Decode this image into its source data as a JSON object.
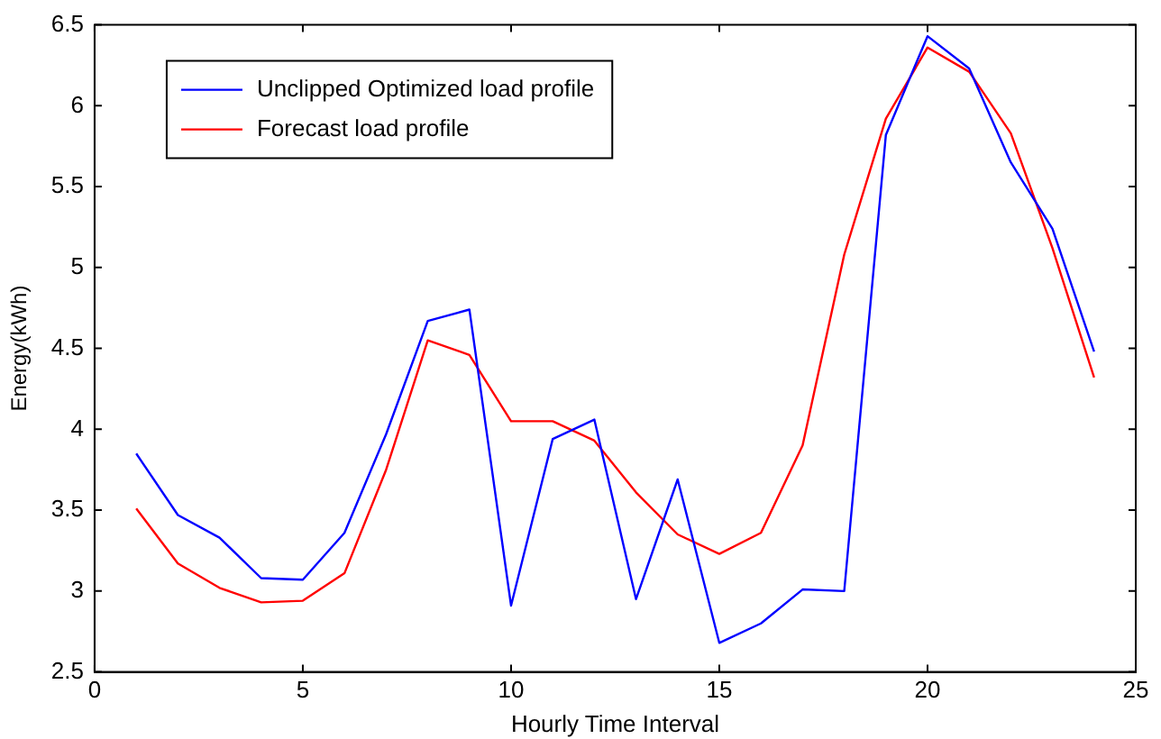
{
  "chart_data": {
    "type": "line",
    "xlabel": "Hourly Time Interval",
    "ylabel": "Energy(kWh)",
    "x": [
      1,
      2,
      3,
      4,
      5,
      6,
      7,
      8,
      9,
      10,
      11,
      12,
      13,
      14,
      15,
      16,
      17,
      18,
      19,
      20,
      21,
      22,
      23,
      24
    ],
    "series": [
      {
        "name": "Unclipped Optimized load profile",
        "color": "#0000ff",
        "values": [
          3.85,
          3.47,
          3.33,
          3.08,
          3.07,
          3.36,
          3.97,
          4.67,
          4.74,
          2.91,
          3.94,
          4.06,
          2.95,
          3.69,
          2.68,
          2.8,
          3.01,
          3.0,
          5.82,
          6.43,
          6.23,
          5.65,
          5.24,
          4.48
        ]
      },
      {
        "name": "Forecast load profile",
        "color": "#ff0000",
        "values": [
          3.51,
          3.17,
          3.02,
          2.93,
          2.94,
          3.11,
          3.75,
          4.55,
          4.46,
          4.05,
          4.05,
          3.93,
          3.61,
          3.35,
          3.23,
          3.36,
          3.9,
          5.08,
          5.92,
          6.36,
          6.21,
          5.83,
          5.12,
          4.32
        ]
      }
    ],
    "xlim": [
      0,
      25
    ],
    "xticks": [
      0,
      5,
      10,
      15,
      20,
      25
    ],
    "ylim": [
      2.5,
      6.5
    ],
    "yticks": [
      2.5,
      3,
      3.5,
      4,
      4.5,
      5,
      5.5,
      6,
      6.5
    ],
    "grid": false,
    "legend": "top left",
    "marker": "none",
    "line_style": "solid"
  }
}
